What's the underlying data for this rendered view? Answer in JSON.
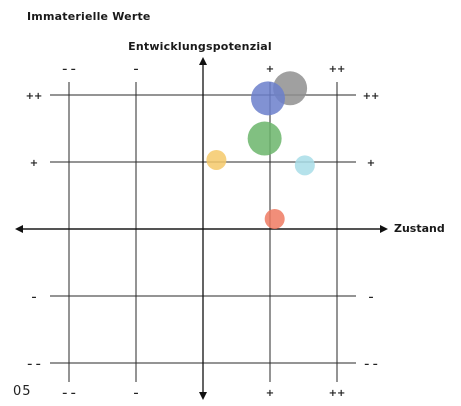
{
  "page_number": "05",
  "chart_data": {
    "type": "scatter",
    "title": "Immaterielle Werte",
    "xlabel": "Zustand",
    "ylabel": "Entwicklungspotenzial",
    "xlim": [
      -2.5,
      2.5
    ],
    "ylim": [
      -2.5,
      2.5
    ],
    "x_ticks": [
      {
        "value": -2,
        "label": "– –"
      },
      {
        "value": -1,
        "label": "–"
      },
      {
        "value": 1,
        "label": "+"
      },
      {
        "value": 2,
        "label": "++"
      }
    ],
    "y_ticks": [
      {
        "value": 2,
        "label": "++"
      },
      {
        "value": 1,
        "label": "+"
      },
      {
        "value": -1,
        "label": "–"
      },
      {
        "value": -2,
        "label": "– –"
      }
    ],
    "grid": true,
    "points": [
      {
        "x": 1.3,
        "y": 2.1,
        "size": 17,
        "color": "#8f8f8f"
      },
      {
        "x": 0.97,
        "y": 1.95,
        "size": 17,
        "color": "#6b7fcb"
      },
      {
        "x": 0.92,
        "y": 1.35,
        "size": 17,
        "color": "#6bb56b"
      },
      {
        "x": 0.2,
        "y": 1.03,
        "size": 10,
        "color": "#f5c96a"
      },
      {
        "x": 1.52,
        "y": 0.95,
        "size": 10,
        "color": "#a8dde8"
      },
      {
        "x": 1.07,
        "y": 0.15,
        "size": 10,
        "color": "#ef7a62"
      }
    ]
  }
}
